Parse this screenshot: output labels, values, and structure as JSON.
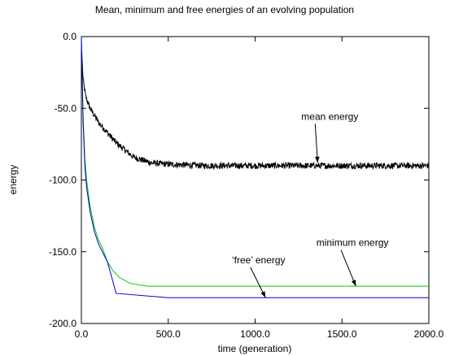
{
  "chart_data": {
    "type": "line",
    "title": "Mean, minimum and free energies of an evolving population",
    "xlabel": "time (generation)",
    "ylabel": "energy",
    "xlim": [
      0,
      2000
    ],
    "ylim": [
      -200,
      0
    ],
    "xticks": [
      0,
      500,
      1000,
      1500,
      2000
    ],
    "xtick_labels": [
      "0.0",
      "500.0",
      "1000.0",
      "1500.0",
      "2000.0"
    ],
    "yticks": [
      0,
      -50,
      -100,
      -150,
      -200
    ],
    "ytick_labels": [
      "0.0",
      "-50.0",
      "-100.0",
      "-150.0",
      "-200.0"
    ],
    "grid": false,
    "legend": "none",
    "series": [
      {
        "color": "#000000",
        "noise": 2.2,
        "points": [
          [
            0,
            -5
          ],
          [
            10,
            -30
          ],
          [
            25,
            -42
          ],
          [
            50,
            -50
          ],
          [
            75,
            -55
          ],
          [
            100,
            -60
          ],
          [
            150,
            -67
          ],
          [
            200,
            -74
          ],
          [
            250,
            -79
          ],
          [
            300,
            -84
          ],
          [
            350,
            -86
          ],
          [
            400,
            -88
          ],
          [
            500,
            -89
          ],
          [
            700,
            -90
          ],
          [
            1000,
            -90
          ],
          [
            1300,
            -90
          ],
          [
            1500,
            -90
          ],
          [
            1800,
            -90
          ],
          [
            2000,
            -90
          ]
        ]
      },
      {
        "color": "#00cc00",
        "points": [
          [
            0,
            0
          ],
          [
            10,
            -55
          ],
          [
            20,
            -85
          ],
          [
            30,
            -100
          ],
          [
            50,
            -118
          ],
          [
            75,
            -133
          ],
          [
            100,
            -142
          ],
          [
            120,
            -147
          ],
          [
            150,
            -157
          ],
          [
            180,
            -163
          ],
          [
            220,
            -168
          ],
          [
            280,
            -172
          ],
          [
            380,
            -174
          ],
          [
            500,
            -174
          ],
          [
            1000,
            -174
          ],
          [
            2000,
            -174
          ]
        ]
      },
      {
        "color": "#0000cc",
        "points": [
          [
            0,
            0
          ],
          [
            10,
            -60
          ],
          [
            20,
            -90
          ],
          [
            30,
            -105
          ],
          [
            50,
            -122
          ],
          [
            75,
            -136
          ],
          [
            100,
            -145
          ],
          [
            150,
            -157
          ],
          [
            200,
            -179
          ],
          [
            500,
            -182
          ],
          [
            1000,
            -182
          ],
          [
            2000,
            -182
          ]
        ]
      }
    ],
    "annotations": [
      {
        "text": "mean energy",
        "text_x": 1430,
        "text_y": -58,
        "arrow_to": [
          1360,
          -88
        ]
      },
      {
        "text": "minimum energy",
        "text_x": 1560,
        "text_y": -146,
        "arrow_to": [
          1580,
          -174
        ]
      },
      {
        "text": "‘free’ energy",
        "text_x": 1020,
        "text_y": -158,
        "arrow_to": [
          1060,
          -182
        ]
      }
    ]
  }
}
